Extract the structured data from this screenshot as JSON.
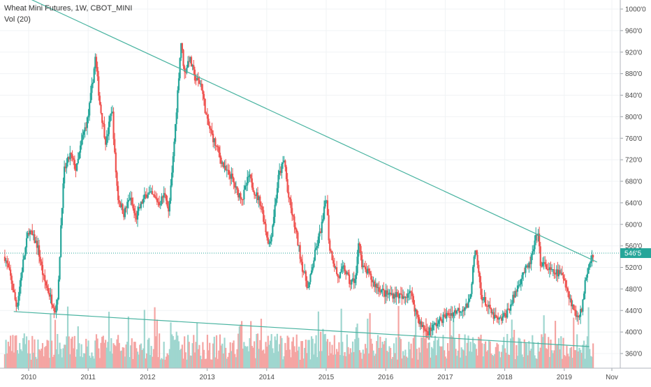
{
  "legend": {
    "symbol_line": "Wheat Mini Futures, 1W, CBOT_MINI",
    "volume_line": "Vol (20)"
  },
  "colors": {
    "up": "#26a69a",
    "down": "#ef5350",
    "up_volume": "#9fd6cf",
    "down_volume": "#f4a5a3",
    "trendline": "#48b3a0",
    "price_line": "#26a69a"
  },
  "current_price_label": "546'5",
  "chart_data": {
    "type": "candlestick",
    "title": "Wheat Mini Futures, 1W, CBOT_MINI",
    "y_axis_position": "right",
    "ylim": [
      340,
      1020
    ],
    "y_ticks": [
      {
        "value": 1000,
        "label": "1000'0"
      },
      {
        "value": 960,
        "label": "960'0"
      },
      {
        "value": 920,
        "label": "920'0"
      },
      {
        "value": 880,
        "label": "880'0"
      },
      {
        "value": 840,
        "label": "840'0"
      },
      {
        "value": 800,
        "label": "800'0"
      },
      {
        "value": 760,
        "label": "760'0"
      },
      {
        "value": 720,
        "label": "720'0"
      },
      {
        "value": 680,
        "label": "680'0"
      },
      {
        "value": 640,
        "label": "640'0"
      },
      {
        "value": 600,
        "label": "600'0"
      },
      {
        "value": 560,
        "label": "560'0"
      },
      {
        "value": 520,
        "label": "520'0"
      },
      {
        "value": 480,
        "label": "480'0"
      },
      {
        "value": 440,
        "label": "440'0"
      },
      {
        "value": 400,
        "label": "400'0"
      },
      {
        "value": 360,
        "label": "360'0"
      }
    ],
    "xlim": [
      2009.6,
      2019.85
    ],
    "x_ticks": [
      {
        "value": 2010,
        "label": "2010"
      },
      {
        "value": 2011,
        "label": "2011"
      },
      {
        "value": 2012,
        "label": "2012"
      },
      {
        "value": 2013,
        "label": "2013"
      },
      {
        "value": 2014,
        "label": "2014"
      },
      {
        "value": 2015,
        "label": "2015"
      },
      {
        "value": 2016,
        "label": "2016"
      },
      {
        "value": 2017,
        "label": "2017"
      },
      {
        "value": 2018,
        "label": "2018"
      },
      {
        "value": 2019,
        "label": "2019"
      },
      {
        "value": 2019.8,
        "label": "Nov"
      }
    ],
    "current_price": 546.6,
    "price_series_approx": [
      [
        2009.6,
        540
      ],
      [
        2009.7,
        500
      ],
      [
        2009.8,
        445
      ],
      [
        2009.9,
        525
      ],
      [
        2010.0,
        590
      ],
      [
        2010.15,
        560
      ],
      [
        2010.25,
        500
      ],
      [
        2010.35,
        470
      ],
      [
        2010.45,
        440
      ],
      [
        2010.5,
        480
      ],
      [
        2010.55,
        620
      ],
      [
        2010.6,
        700
      ],
      [
        2010.7,
        730
      ],
      [
        2010.8,
        700
      ],
      [
        2010.9,
        760
      ],
      [
        2011.0,
        800
      ],
      [
        2011.08,
        870
      ],
      [
        2011.12,
        910
      ],
      [
        2011.2,
        820
      ],
      [
        2011.3,
        750
      ],
      [
        2011.4,
        820
      ],
      [
        2011.45,
        720
      ],
      [
        2011.5,
        650
      ],
      [
        2011.6,
        620
      ],
      [
        2011.7,
        650
      ],
      [
        2011.8,
        610
      ],
      [
        2011.9,
        640
      ],
      [
        2012.0,
        660
      ],
      [
        2012.2,
        640
      ],
      [
        2012.3,
        660
      ],
      [
        2012.35,
        620
      ],
      [
        2012.4,
        680
      ],
      [
        2012.5,
        840
      ],
      [
        2012.56,
        940
      ],
      [
        2012.62,
        880
      ],
      [
        2012.7,
        910
      ],
      [
        2012.8,
        870
      ],
      [
        2012.9,
        860
      ],
      [
        2013.0,
        790
      ],
      [
        2013.1,
        760
      ],
      [
        2013.2,
        730
      ],
      [
        2013.3,
        700
      ],
      [
        2013.4,
        690
      ],
      [
        2013.5,
        660
      ],
      [
        2013.6,
        650
      ],
      [
        2013.7,
        690
      ],
      [
        2013.8,
        660
      ],
      [
        2013.9,
        640
      ],
      [
        2014.0,
        580
      ],
      [
        2014.05,
        560
      ],
      [
        2014.1,
        600
      ],
      [
        2014.2,
        690
      ],
      [
        2014.3,
        720
      ],
      [
        2014.35,
        660
      ],
      [
        2014.5,
        580
      ],
      [
        2014.6,
        520
      ],
      [
        2014.7,
        480
      ],
      [
        2014.8,
        540
      ],
      [
        2014.95,
        610
      ],
      [
        2015.0,
        660
      ],
      [
        2015.05,
        560
      ],
      [
        2015.2,
        500
      ],
      [
        2015.3,
        520
      ],
      [
        2015.4,
        490
      ],
      [
        2015.5,
        500
      ],
      [
        2015.55,
        580
      ],
      [
        2015.6,
        520
      ],
      [
        2015.7,
        510
      ],
      [
        2015.8,
        490
      ],
      [
        2015.9,
        480
      ],
      [
        2016.0,
        470
      ],
      [
        2016.2,
        470
      ],
      [
        2016.3,
        460
      ],
      [
        2016.4,
        480
      ],
      [
        2016.5,
        440
      ],
      [
        2016.6,
        410
      ],
      [
        2016.7,
        400
      ],
      [
        2016.8,
        410
      ],
      [
        2016.9,
        420
      ],
      [
        2017.0,
        430
      ],
      [
        2017.2,
        440
      ],
      [
        2017.4,
        450
      ],
      [
        2017.5,
        550
      ],
      [
        2017.55,
        520
      ],
      [
        2017.6,
        470
      ],
      [
        2017.8,
        430
      ],
      [
        2017.9,
        420
      ],
      [
        2018.0,
        430
      ],
      [
        2018.1,
        450
      ],
      [
        2018.2,
        480
      ],
      [
        2018.3,
        510
      ],
      [
        2018.4,
        520
      ],
      [
        2018.5,
        560
      ],
      [
        2018.55,
        590
      ],
      [
        2018.6,
        530
      ],
      [
        2018.7,
        520
      ],
      [
        2018.8,
        510
      ],
      [
        2018.9,
        510
      ],
      [
        2019.0,
        500
      ],
      [
        2019.1,
        460
      ],
      [
        2019.2,
        430
      ],
      [
        2019.3,
        440
      ],
      [
        2019.35,
        500
      ],
      [
        2019.45,
        540
      ],
      [
        2019.5,
        546.6
      ]
    ],
    "trendlines": [
      {
        "from": [
          2010.0,
          1020
        ],
        "to": [
          2019.55,
          530
        ]
      },
      {
        "from": [
          2009.75,
          438
        ],
        "to": [
          2019.42,
          373
        ]
      }
    ]
  }
}
